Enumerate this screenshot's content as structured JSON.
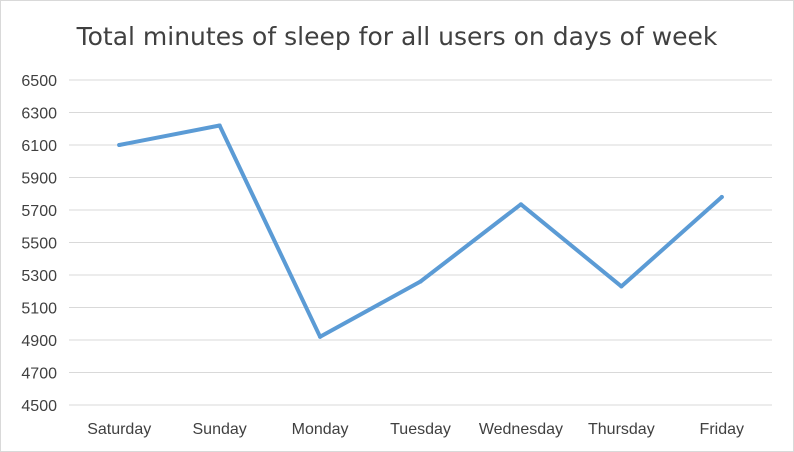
{
  "chart_data": {
    "type": "line",
    "title": "Total minutes of sleep for all users on days of week",
    "xlabel": "",
    "ylabel": "",
    "categories": [
      "Saturday",
      "Sunday",
      "Monday",
      "Tuesday",
      "Wednesday",
      "Thursday",
      "Friday"
    ],
    "series": [
      {
        "values": [
          6100,
          6220,
          4920,
          5260,
          5735,
          5230,
          5780
        ],
        "color": "#5b9bd5"
      }
    ],
    "ylim": [
      4500,
      6500
    ],
    "yticks": [
      4500,
      4700,
      4900,
      5100,
      5300,
      5500,
      5700,
      5900,
      6100,
      6300,
      6500
    ],
    "grid": true,
    "legend": "none",
    "gridline_color": "#d9d9d9"
  }
}
